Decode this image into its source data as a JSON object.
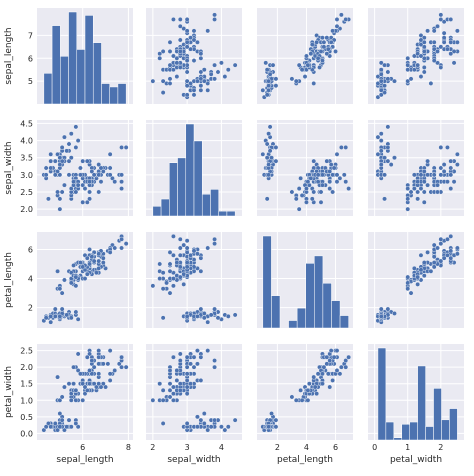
{
  "chart_data": {
    "type": "pairplot",
    "variables": [
      "sepal_length",
      "sepal_width",
      "petal_length",
      "petal_width"
    ],
    "color": "#4c72b0",
    "background": "#eaeaf2",
    "grid": true,
    "axes": {
      "sepal_length": {
        "range": [
          4.0,
          8.2
        ],
        "ticks": [
          6,
          8
        ],
        "row_ticks": [
          5,
          6,
          7
        ]
      },
      "sepal_width": {
        "range": [
          1.8,
          4.6
        ],
        "ticks": [
          2,
          3,
          4
        ],
        "row_ticks": [
          2.0,
          2.5,
          3.0,
          3.5,
          4.0,
          4.5
        ]
      },
      "petal_length": {
        "range": [
          0.6,
          7.2
        ],
        "ticks": [
          2,
          4,
          6
        ],
        "row_ticks": [
          2,
          4,
          6
        ]
      },
      "petal_width": {
        "range": [
          -0.2,
          2.7
        ],
        "ticks": [
          0,
          1,
          2
        ],
        "row_ticks": [
          0.0,
          0.5,
          1.0,
          1.5,
          2.0,
          2.5
        ]
      }
    },
    "histograms": {
      "sepal_length": {
        "edges": [
          4.3,
          4.66,
          5.02,
          5.38,
          5.74,
          6.1,
          6.46,
          6.82,
          7.18,
          7.54,
          7.9
        ],
        "counts": [
          9,
          23,
          14,
          27,
          16,
          26,
          18,
          6,
          5,
          6
        ]
      },
      "sepal_width": {
        "edges": [
          2.0,
          2.24,
          2.48,
          2.72,
          2.96,
          3.2,
          3.44,
          3.68,
          3.92,
          4.16,
          4.4
        ],
        "counts": [
          4,
          7,
          22,
          24,
          38,
          31,
          9,
          11,
          2,
          2
        ]
      },
      "petal_length": {
        "edges": [
          1.0,
          1.59,
          2.18,
          2.77,
          3.36,
          3.95,
          4.54,
          5.13,
          5.72,
          6.31,
          6.9
        ],
        "counts": [
          37,
          13,
          0,
          3,
          8,
          26,
          29,
          18,
          11,
          5
        ]
      },
      "petal_width": {
        "edges": [
          0.1,
          0.34,
          0.58,
          0.82,
          1.06,
          1.3,
          1.54,
          1.78,
          2.02,
          2.26,
          2.5
        ],
        "counts": [
          41,
          8,
          1,
          7,
          8,
          33,
          6,
          23,
          9,
          14
        ]
      }
    },
    "points": [
      [
        5.1,
        3.5,
        1.4,
        0.2
      ],
      [
        4.9,
        3.0,
        1.4,
        0.2
      ],
      [
        4.7,
        3.2,
        1.3,
        0.2
      ],
      [
        4.6,
        3.1,
        1.5,
        0.2
      ],
      [
        5.0,
        3.6,
        1.4,
        0.2
      ],
      [
        5.4,
        3.9,
        1.7,
        0.4
      ],
      [
        4.6,
        3.4,
        1.4,
        0.3
      ],
      [
        5.0,
        3.4,
        1.5,
        0.2
      ],
      [
        4.4,
        2.9,
        1.4,
        0.2
      ],
      [
        4.9,
        3.1,
        1.5,
        0.1
      ],
      [
        5.4,
        3.7,
        1.5,
        0.2
      ],
      [
        4.8,
        3.4,
        1.6,
        0.2
      ],
      [
        4.8,
        3.0,
        1.4,
        0.1
      ],
      [
        4.3,
        3.0,
        1.1,
        0.1
      ],
      [
        5.8,
        4.0,
        1.2,
        0.2
      ],
      [
        5.7,
        4.4,
        1.5,
        0.4
      ],
      [
        5.4,
        3.9,
        1.3,
        0.4
      ],
      [
        5.1,
        3.5,
        1.4,
        0.3
      ],
      [
        5.7,
        3.8,
        1.7,
        0.3
      ],
      [
        5.1,
        3.8,
        1.5,
        0.3
      ],
      [
        5.4,
        3.4,
        1.7,
        0.2
      ],
      [
        5.1,
        3.7,
        1.5,
        0.4
      ],
      [
        4.6,
        3.6,
        1.0,
        0.2
      ],
      [
        5.1,
        3.3,
        1.7,
        0.5
      ],
      [
        4.8,
        3.4,
        1.9,
        0.2
      ],
      [
        5.0,
        3.0,
        1.6,
        0.2
      ],
      [
        5.0,
        3.4,
        1.6,
        0.4
      ],
      [
        5.2,
        3.5,
        1.5,
        0.2
      ],
      [
        5.2,
        3.4,
        1.4,
        0.2
      ],
      [
        4.7,
        3.2,
        1.6,
        0.2
      ],
      [
        4.8,
        3.1,
        1.6,
        0.2
      ],
      [
        5.4,
        3.4,
        1.5,
        0.4
      ],
      [
        5.2,
        4.1,
        1.5,
        0.1
      ],
      [
        5.5,
        4.2,
        1.4,
        0.2
      ],
      [
        4.9,
        3.1,
        1.5,
        0.2
      ],
      [
        5.0,
        3.2,
        1.2,
        0.2
      ],
      [
        5.5,
        3.5,
        1.3,
        0.2
      ],
      [
        4.9,
        3.6,
        1.4,
        0.1
      ],
      [
        4.4,
        3.0,
        1.3,
        0.2
      ],
      [
        5.1,
        3.4,
        1.5,
        0.2
      ],
      [
        5.0,
        3.5,
        1.3,
        0.3
      ],
      [
        4.5,
        2.3,
        1.3,
        0.3
      ],
      [
        4.4,
        3.2,
        1.3,
        0.2
      ],
      [
        5.0,
        3.5,
        1.6,
        0.6
      ],
      [
        5.1,
        3.8,
        1.9,
        0.4
      ],
      [
        4.8,
        3.0,
        1.4,
        0.3
      ],
      [
        5.1,
        3.8,
        1.6,
        0.2
      ],
      [
        4.6,
        3.2,
        1.4,
        0.2
      ],
      [
        5.3,
        3.7,
        1.5,
        0.2
      ],
      [
        5.0,
        3.3,
        1.4,
        0.2
      ],
      [
        7.0,
        3.2,
        4.7,
        1.4
      ],
      [
        6.4,
        3.2,
        4.5,
        1.5
      ],
      [
        6.9,
        3.1,
        4.9,
        1.5
      ],
      [
        5.5,
        2.3,
        4.0,
        1.3
      ],
      [
        6.5,
        2.8,
        4.6,
        1.5
      ],
      [
        5.7,
        2.8,
        4.5,
        1.3
      ],
      [
        6.3,
        3.3,
        4.7,
        1.6
      ],
      [
        4.9,
        2.4,
        3.3,
        1.0
      ],
      [
        6.6,
        2.9,
        4.6,
        1.3
      ],
      [
        5.2,
        2.7,
        3.9,
        1.4
      ],
      [
        5.0,
        2.0,
        3.5,
        1.0
      ],
      [
        5.9,
        3.0,
        4.2,
        1.5
      ],
      [
        6.0,
        2.2,
        4.0,
        1.0
      ],
      [
        6.1,
        2.9,
        4.7,
        1.4
      ],
      [
        5.6,
        2.9,
        3.6,
        1.3
      ],
      [
        6.7,
        3.1,
        4.4,
        1.4
      ],
      [
        5.6,
        3.0,
        4.5,
        1.5
      ],
      [
        5.8,
        2.7,
        4.1,
        1.0
      ],
      [
        6.2,
        2.2,
        4.5,
        1.5
      ],
      [
        5.6,
        2.5,
        3.9,
        1.1
      ],
      [
        5.9,
        3.2,
        4.8,
        1.8
      ],
      [
        6.1,
        2.8,
        4.0,
        1.3
      ],
      [
        6.3,
        2.5,
        4.9,
        1.5
      ],
      [
        6.1,
        2.8,
        4.7,
        1.2
      ],
      [
        6.4,
        2.9,
        4.3,
        1.3
      ],
      [
        6.6,
        3.0,
        4.4,
        1.4
      ],
      [
        6.8,
        2.8,
        4.8,
        1.4
      ],
      [
        6.7,
        3.0,
        5.0,
        1.7
      ],
      [
        6.0,
        2.9,
        4.5,
        1.5
      ],
      [
        5.7,
        2.6,
        3.5,
        1.0
      ],
      [
        5.5,
        2.4,
        3.8,
        1.1
      ],
      [
        5.5,
        2.4,
        3.7,
        1.0
      ],
      [
        5.8,
        2.7,
        3.9,
        1.2
      ],
      [
        6.0,
        2.7,
        5.1,
        1.6
      ],
      [
        5.4,
        3.0,
        4.5,
        1.5
      ],
      [
        6.0,
        3.4,
        4.5,
        1.6
      ],
      [
        6.7,
        3.1,
        4.7,
        1.5
      ],
      [
        6.3,
        2.3,
        4.4,
        1.3
      ],
      [
        5.6,
        3.0,
        4.1,
        1.3
      ],
      [
        5.5,
        2.5,
        4.0,
        1.3
      ],
      [
        5.5,
        2.6,
        4.4,
        1.2
      ],
      [
        6.1,
        3.0,
        4.6,
        1.4
      ],
      [
        5.8,
        2.6,
        4.0,
        1.2
      ],
      [
        5.0,
        2.3,
        3.3,
        1.0
      ],
      [
        5.6,
        2.7,
        4.2,
        1.3
      ],
      [
        5.7,
        3.0,
        4.2,
        1.2
      ],
      [
        5.7,
        2.9,
        4.2,
        1.3
      ],
      [
        6.2,
        2.9,
        4.3,
        1.3
      ],
      [
        5.1,
        2.5,
        3.0,
        1.1
      ],
      [
        5.7,
        2.8,
        4.1,
        1.3
      ],
      [
        6.3,
        3.3,
        6.0,
        2.5
      ],
      [
        5.8,
        2.7,
        5.1,
        1.9
      ],
      [
        7.1,
        3.0,
        5.9,
        2.1
      ],
      [
        6.3,
        2.9,
        5.6,
        1.8
      ],
      [
        6.5,
        3.0,
        5.8,
        2.2
      ],
      [
        7.6,
        3.0,
        6.6,
        2.1
      ],
      [
        4.9,
        2.5,
        4.5,
        1.7
      ],
      [
        7.3,
        2.9,
        6.3,
        1.8
      ],
      [
        6.7,
        2.5,
        5.8,
        1.8
      ],
      [
        7.2,
        3.6,
        6.1,
        2.5
      ],
      [
        6.5,
        3.2,
        5.1,
        2.0
      ],
      [
        6.4,
        2.7,
        5.3,
        1.9
      ],
      [
        6.8,
        3.0,
        5.5,
        2.1
      ],
      [
        5.7,
        2.5,
        5.0,
        2.0
      ],
      [
        5.8,
        2.8,
        5.1,
        2.4
      ],
      [
        6.4,
        3.2,
        5.3,
        2.3
      ],
      [
        6.5,
        3.0,
        5.5,
        1.8
      ],
      [
        7.7,
        3.8,
        6.7,
        2.2
      ],
      [
        7.7,
        2.6,
        6.9,
        2.3
      ],
      [
        6.0,
        2.2,
        5.0,
        1.5
      ],
      [
        6.9,
        3.2,
        5.7,
        2.3
      ],
      [
        5.6,
        2.8,
        4.9,
        2.0
      ],
      [
        7.7,
        2.8,
        6.7,
        2.0
      ],
      [
        6.3,
        2.7,
        4.9,
        1.8
      ],
      [
        6.7,
        3.3,
        5.7,
        2.1
      ],
      [
        7.2,
        3.2,
        6.0,
        1.8
      ],
      [
        6.2,
        2.8,
        4.8,
        1.8
      ],
      [
        6.1,
        3.0,
        4.9,
        1.8
      ],
      [
        6.4,
        2.8,
        5.6,
        2.1
      ],
      [
        7.2,
        3.0,
        5.8,
        1.6
      ],
      [
        7.4,
        2.8,
        6.1,
        1.9
      ],
      [
        7.9,
        3.8,
        6.4,
        2.0
      ],
      [
        6.4,
        2.8,
        5.6,
        2.2
      ],
      [
        6.3,
        2.8,
        5.1,
        1.5
      ],
      [
        6.1,
        2.6,
        5.6,
        1.4
      ],
      [
        7.7,
        3.0,
        6.1,
        2.3
      ],
      [
        6.3,
        3.4,
        5.6,
        2.4
      ],
      [
        6.4,
        3.1,
        5.5,
        1.8
      ],
      [
        6.0,
        3.0,
        4.8,
        1.8
      ],
      [
        6.9,
        3.1,
        5.4,
        2.1
      ],
      [
        6.7,
        3.1,
        5.6,
        2.4
      ],
      [
        6.9,
        3.1,
        5.1,
        2.3
      ],
      [
        5.8,
        2.7,
        5.1,
        1.9
      ],
      [
        6.8,
        3.2,
        5.9,
        2.3
      ],
      [
        6.7,
        3.3,
        5.7,
        2.5
      ],
      [
        6.7,
        3.0,
        5.2,
        2.3
      ],
      [
        6.3,
        2.5,
        5.0,
        1.9
      ],
      [
        6.5,
        3.0,
        5.2,
        2.0
      ],
      [
        6.2,
        3.4,
        5.4,
        2.3
      ],
      [
        5.9,
        3.0,
        5.1,
        1.8
      ]
    ]
  }
}
